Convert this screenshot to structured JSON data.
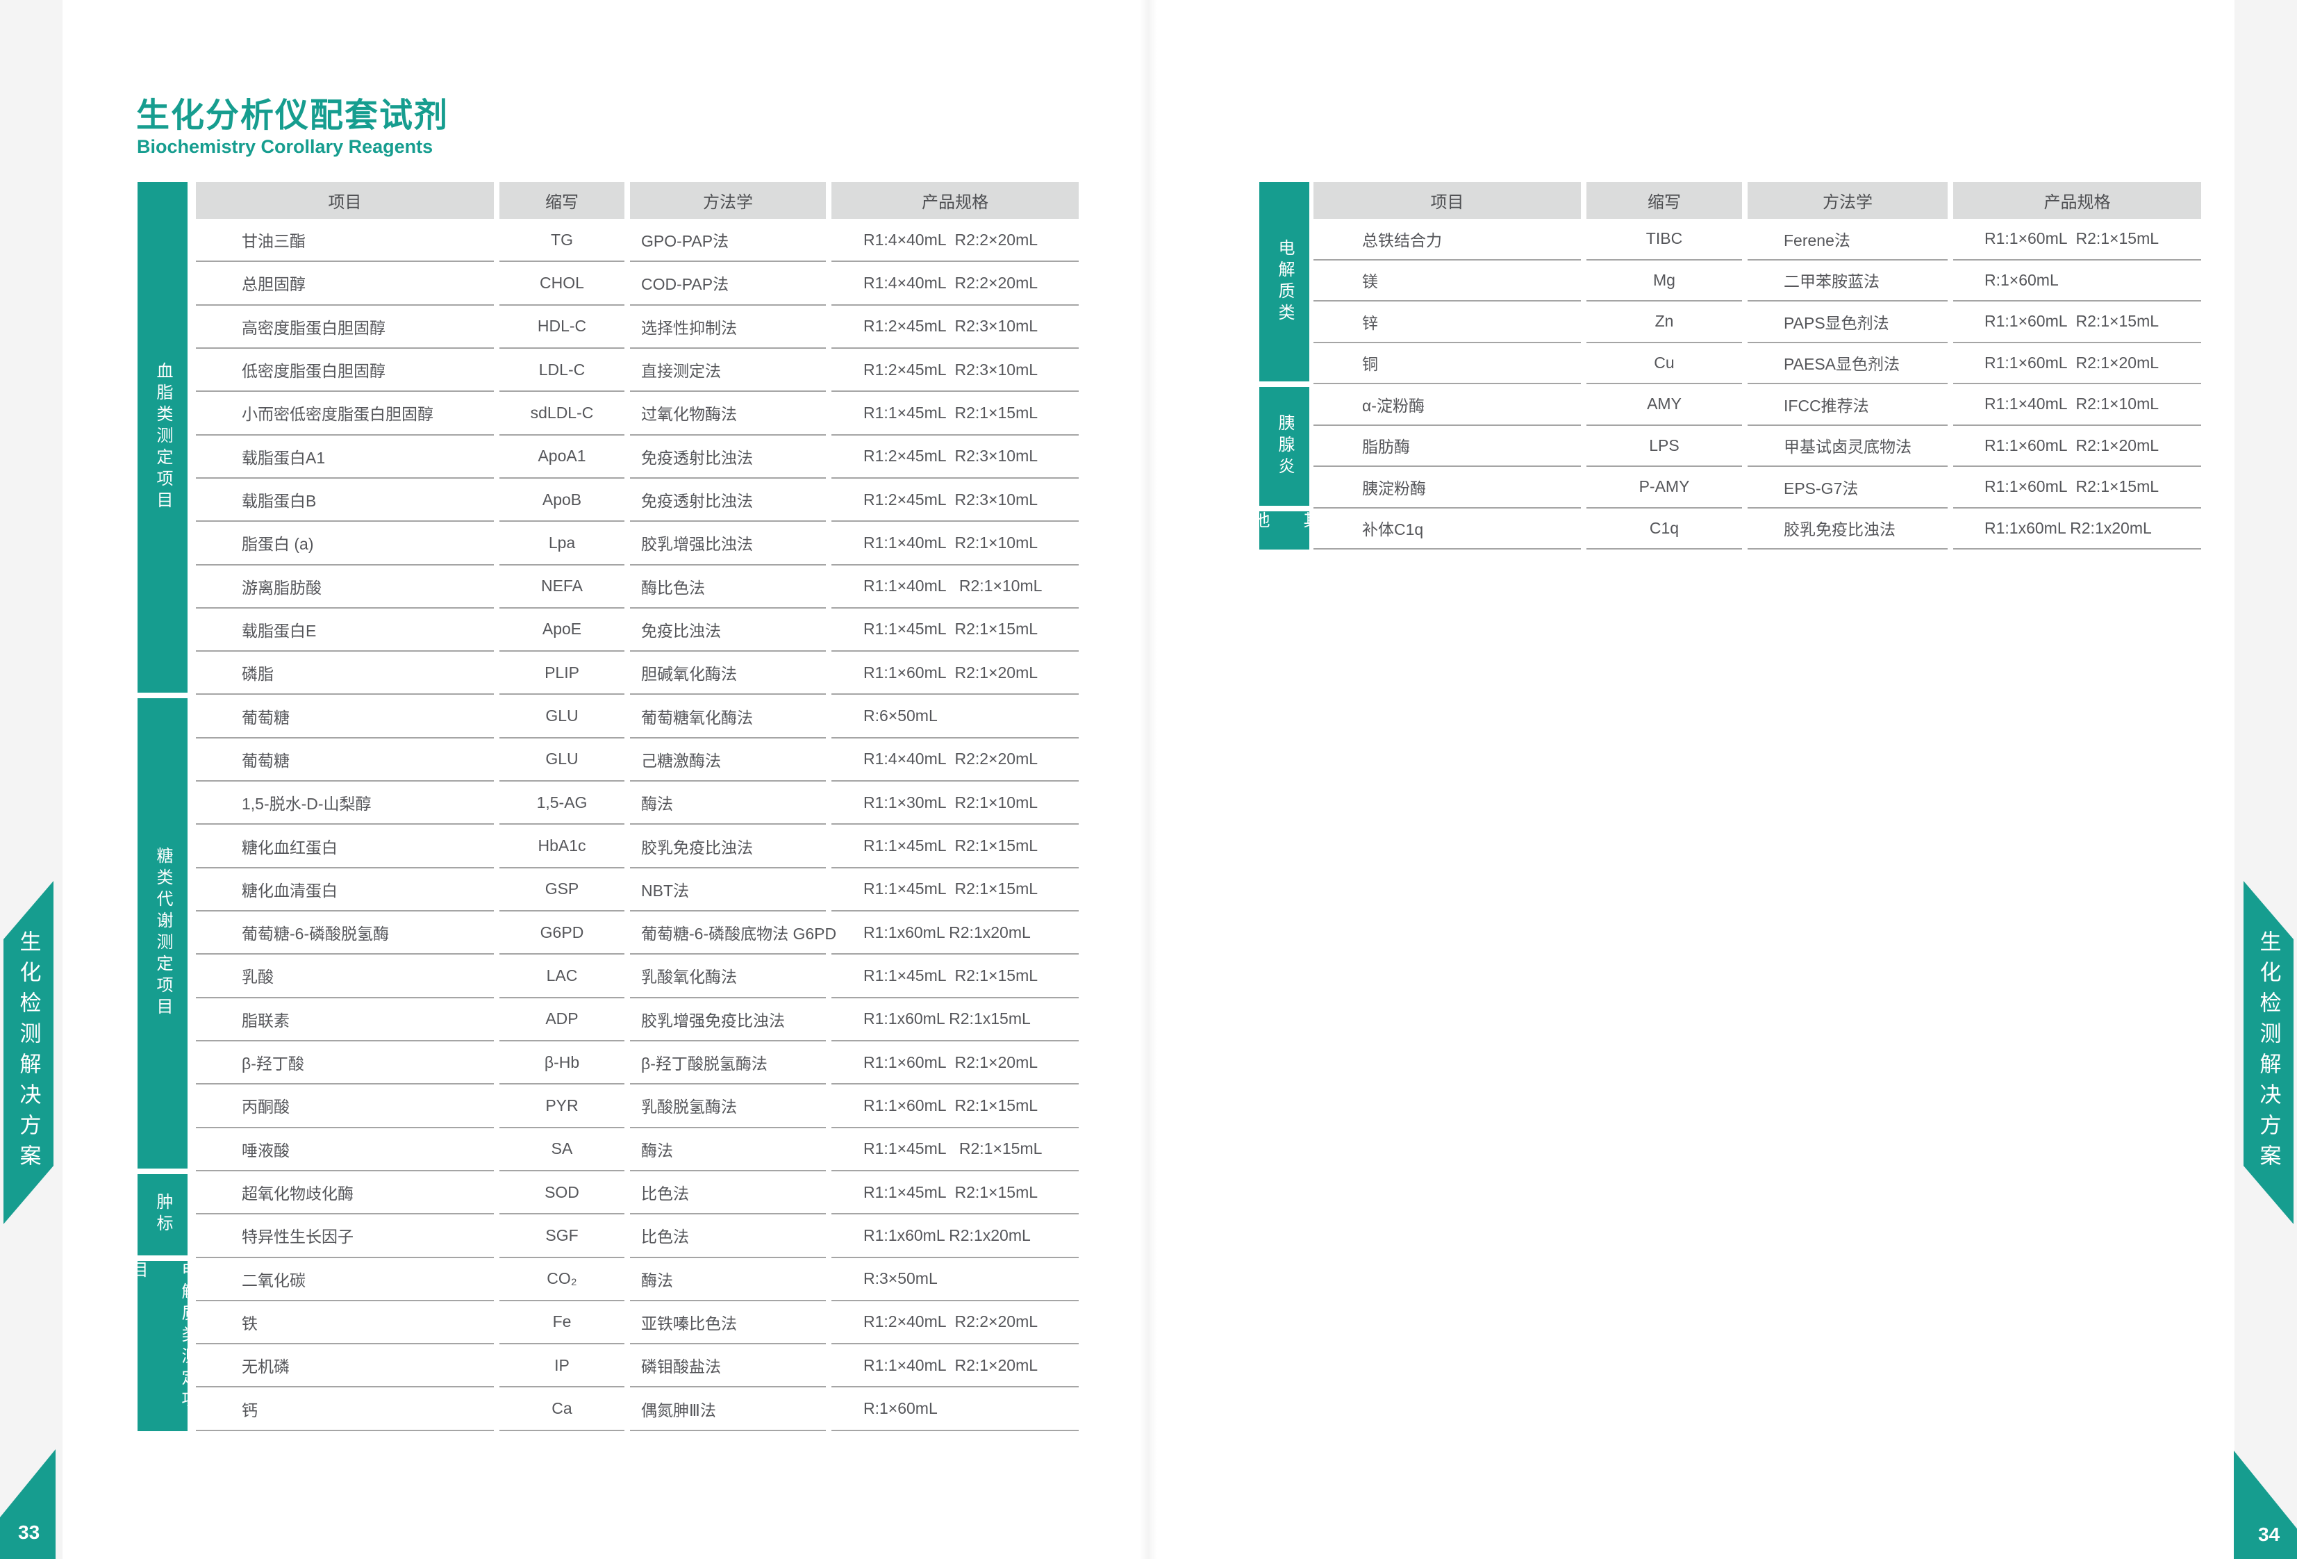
{
  "page": {
    "title": "生化分析仪配套试剂",
    "subtitle": "Biochemistry Corollary Reagents",
    "left_page_number": "33",
    "right_page_number": "34",
    "side_banner_text": "生化检测解决方案"
  },
  "colors": {
    "teal": "#169d8f",
    "header_bg": "#dbdcdc",
    "row_line": "#a5a5a5",
    "cell_text": "#55565a",
    "margin_gray": "#f4f4f4"
  },
  "left_table": {
    "headers": [
      "项目",
      "缩写",
      "方法学",
      "产品规格"
    ],
    "sections": [
      {
        "category": "血脂类测定项目",
        "rows": [
          {
            "item": "甘油三酯",
            "abbr": "TG",
            "method": "GPO-PAP法",
            "spec": "R1:4×40mL  R2:2×20mL"
          },
          {
            "item": "总胆固醇",
            "abbr": "CHOL",
            "method": "COD-PAP法",
            "spec": "R1:4×40mL  R2:2×20mL"
          },
          {
            "item": "高密度脂蛋白胆固醇",
            "abbr": "HDL-C",
            "method": "选择性抑制法",
            "spec": "R1:2×45mL  R2:3×10mL"
          },
          {
            "item": "低密度脂蛋白胆固醇",
            "abbr": "LDL-C",
            "method": "直接测定法",
            "spec": "R1:2×45mL  R2:3×10mL"
          },
          {
            "item": "小而密低密度脂蛋白胆固醇",
            "abbr": "sdLDL-C",
            "method": "过氧化物酶法",
            "spec": "R1:1×45mL  R2:1×15mL"
          },
          {
            "item": "载脂蛋白A1",
            "abbr": "ApoA1",
            "method": "免疫透射比浊法",
            "spec": "R1:2×45mL  R2:3×10mL"
          },
          {
            "item": "载脂蛋白B",
            "abbr": "ApoB",
            "method": "免疫透射比浊法",
            "spec": "R1:2×45mL  R2:3×10mL"
          },
          {
            "item": "脂蛋白 (a)",
            "abbr": "Lpa",
            "method": "胶乳增强比浊法",
            "spec": "R1:1×40mL  R2:1×10mL"
          },
          {
            "item": "游离脂肪酸",
            "abbr": "NEFA",
            "method": "酶比色法",
            "spec": "R1:1×40mL   R2:1×10mL"
          },
          {
            "item": "载脂蛋白E",
            "abbr": "ApoE",
            "method": "免疫比浊法",
            "spec": "R1:1×45mL  R2:1×15mL"
          },
          {
            "item": "磷脂",
            "abbr": "PLIP",
            "method": "胆碱氧化酶法",
            "spec": "R1:1×60mL  R2:1×20mL"
          }
        ]
      },
      {
        "category": "糖类代谢测定项目",
        "rows": [
          {
            "item": "葡萄糖",
            "abbr": "GLU",
            "method": "葡萄糖氧化酶法",
            "spec": "R:6×50mL"
          },
          {
            "item": "葡萄糖",
            "abbr": "GLU",
            "method": "己糖激酶法",
            "spec": "R1:4×40mL  R2:2×20mL"
          },
          {
            "item": "1,5-脱水-D-山梨醇",
            "abbr": "1,5-AG",
            "method": "酶法",
            "spec": "R1:1×30mL  R2:1×10mL"
          },
          {
            "item": "糖化血红蛋白",
            "abbr": "HbA1c",
            "method": "胶乳免疫比浊法",
            "spec": "R1:1×45mL  R2:1×15mL"
          },
          {
            "item": "糖化血清蛋白",
            "abbr": "GSP",
            "method": "NBT法",
            "spec": "R1:1×45mL  R2:1×15mL"
          },
          {
            "item": "葡萄糖-6-磷酸脱氢酶",
            "abbr": "G6PD",
            "method": "葡萄糖-6-磷酸底物法 G6PD",
            "spec": "R1:1x60mL R2:1x20mL"
          },
          {
            "item": "乳酸",
            "abbr": "LAC",
            "method": "乳酸氧化酶法",
            "spec": "R1:1×45mL  R2:1×15mL"
          },
          {
            "item": "脂联素",
            "abbr": "ADP",
            "method": "胶乳增强免疫比浊法",
            "spec": "R1:1x60mL R2:1x15mL"
          },
          {
            "item": "β-羟丁酸",
            "abbr": "β-Hb",
            "method": "β-羟丁酸脱氢酶法",
            "spec": "R1:1×60mL  R2:1×20mL"
          },
          {
            "item": "丙酮酸",
            "abbr": "PYR",
            "method": "乳酸脱氢酶法",
            "spec": "R1:1×60mL  R2:1×15mL"
          },
          {
            "item": "唾液酸",
            "abbr": "SA",
            "method": "酶法",
            "spec": "R1:1×45mL   R2:1×15mL"
          }
        ]
      },
      {
        "category": "肿标",
        "rows": [
          {
            "item": "超氧化物歧化酶",
            "abbr": "SOD",
            "method": "比色法",
            "spec": "R1:1×45mL  R2:1×15mL"
          },
          {
            "item": "特异性生长因子",
            "abbr": "SGF",
            "method": "比色法",
            "spec": "R1:1x60mL R2:1x20mL"
          }
        ]
      },
      {
        "category": "电解质类测定项目",
        "rows": [
          {
            "item": "二氧化碳",
            "abbr": "CO₂",
            "method": "酶法",
            "spec": "R:3×50mL"
          },
          {
            "item": "铁",
            "abbr": "Fe",
            "method": "亚铁嗪比色法",
            "spec": "R1:2×40mL  R2:2×20mL"
          },
          {
            "item": "无机磷",
            "abbr": "IP",
            "method": "磷钼酸盐法",
            "spec": "R1:1×40mL  R2:1×20mL"
          },
          {
            "item": "钙",
            "abbr": "Ca",
            "method": "偶氮胂Ⅲ法",
            "spec": "R:1×60mL"
          }
        ]
      }
    ]
  },
  "right_table": {
    "headers": [
      "项目",
      "缩写",
      "方法学",
      "产品规格"
    ],
    "sections": [
      {
        "category": "电解质类",
        "rows": [
          {
            "item": "总铁结合力",
            "abbr": "TIBC",
            "method": "Ferene法",
            "spec": "R1:1×60mL  R2:1×15mL"
          },
          {
            "item": "镁",
            "abbr": "Mg",
            "method": "二甲苯胺蓝法",
            "spec": "R:1×60mL"
          },
          {
            "item": "锌",
            "abbr": "Zn",
            "method": "PAPS显色剂法",
            "spec": "R1:1×60mL  R2:1×15mL"
          },
          {
            "item": "铜",
            "abbr": "Cu",
            "method": "PAESA显色剂法",
            "spec": "R1:1×60mL  R2:1×20mL"
          }
        ]
      },
      {
        "category": "胰腺炎",
        "rows": [
          {
            "item": "α-淀粉酶",
            "abbr": "AMY",
            "method": "IFCC推荐法",
            "spec": "R1:1×40mL  R2:1×10mL"
          },
          {
            "item": "脂肪酶",
            "abbr": "LPS",
            "method": "甲基试卤灵底物法",
            "spec": "R1:1×60mL  R2:1×20mL"
          },
          {
            "item": "胰淀粉酶",
            "abbr": "P-AMY",
            "method": "EPS-G7法",
            "spec": "R1:1×60mL  R2:1×15mL"
          }
        ]
      },
      {
        "category": "其他",
        "rows": [
          {
            "item": "补体C1q",
            "abbr": "C1q",
            "method": "胶乳免疫比浊法",
            "spec": "R1:1x60mL R2:1x20mL"
          }
        ]
      }
    ]
  }
}
